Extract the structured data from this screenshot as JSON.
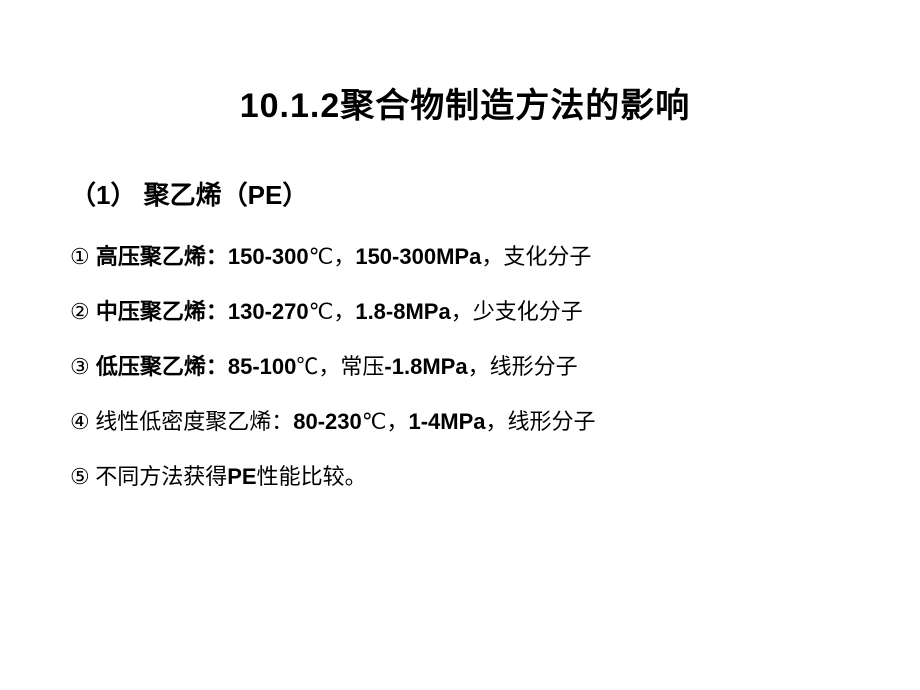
{
  "title": "10.1.2聚合物制造方法的影响",
  "subtitle": "（1） 聚乙烯（PE）",
  "items": [
    {
      "marker": "①",
      "label": " 高压聚乙烯：",
      "temp": "150-300",
      "temp_unit": "℃，",
      "pressure": "150-300MPa",
      "sep": "，",
      "tail": "支化分子"
    },
    {
      "marker": "②",
      "label": " 中压聚乙烯：",
      "temp": "130-270",
      "temp_unit": "℃，",
      "pressure": "1.8-8MPa",
      "sep": "，",
      "tail": "少支化分子"
    },
    {
      "marker": "③",
      "label": " 低压聚乙烯：",
      "temp": "85-100",
      "temp_unit": "℃，",
      "pressure_prefix": "常压",
      "pressure": "-1.8MPa",
      "sep": "，",
      "tail": "线形分子"
    },
    {
      "marker": "④",
      "label": " 线性低密度聚乙烯：",
      "temp": "80-230",
      "temp_unit": "℃，",
      "pressure": "1-4MPa",
      "sep": "，",
      "tail": "线形分子"
    },
    {
      "marker": "⑤",
      "label": " ",
      "text_a": "不同方法获得",
      "text_bold": "PE",
      "text_b": "性能比较。"
    }
  ],
  "style": {
    "background_color": "#ffffff",
    "text_color": "#000000",
    "title_fontsize": 34,
    "subtitle_fontsize": 26,
    "item_fontsize": 22
  }
}
